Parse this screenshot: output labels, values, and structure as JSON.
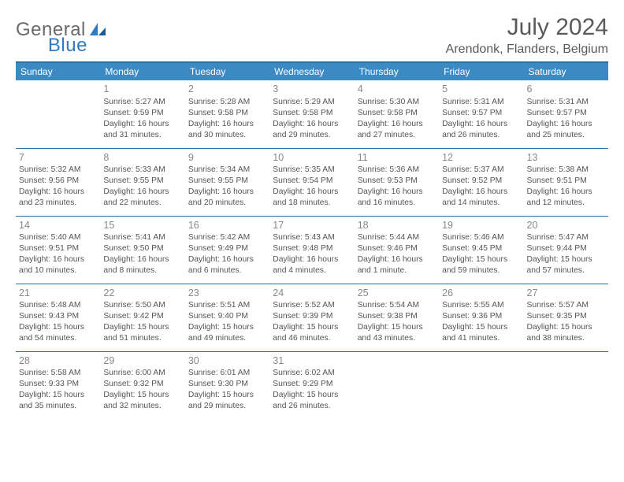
{
  "logo": {
    "general": "General",
    "blue": "Blue"
  },
  "header": {
    "month_title": "July 2024",
    "location": "Arendonk, Flanders, Belgium"
  },
  "colors": {
    "header_bg": "#3b8ac4",
    "border": "#2f6fa0",
    "logo_blue": "#2f7ac0"
  },
  "weekdays": [
    "Sunday",
    "Monday",
    "Tuesday",
    "Wednesday",
    "Thursday",
    "Friday",
    "Saturday"
  ],
  "weeks": [
    [
      null,
      {
        "n": "1",
        "sr": "Sunrise: 5:27 AM",
        "ss": "Sunset: 9:59 PM",
        "d1": "Daylight: 16 hours",
        "d2": "and 31 minutes."
      },
      {
        "n": "2",
        "sr": "Sunrise: 5:28 AM",
        "ss": "Sunset: 9:58 PM",
        "d1": "Daylight: 16 hours",
        "d2": "and 30 minutes."
      },
      {
        "n": "3",
        "sr": "Sunrise: 5:29 AM",
        "ss": "Sunset: 9:58 PM",
        "d1": "Daylight: 16 hours",
        "d2": "and 29 minutes."
      },
      {
        "n": "4",
        "sr": "Sunrise: 5:30 AM",
        "ss": "Sunset: 9:58 PM",
        "d1": "Daylight: 16 hours",
        "d2": "and 27 minutes."
      },
      {
        "n": "5",
        "sr": "Sunrise: 5:31 AM",
        "ss": "Sunset: 9:57 PM",
        "d1": "Daylight: 16 hours",
        "d2": "and 26 minutes."
      },
      {
        "n": "6",
        "sr": "Sunrise: 5:31 AM",
        "ss": "Sunset: 9:57 PM",
        "d1": "Daylight: 16 hours",
        "d2": "and 25 minutes."
      }
    ],
    [
      {
        "n": "7",
        "sr": "Sunrise: 5:32 AM",
        "ss": "Sunset: 9:56 PM",
        "d1": "Daylight: 16 hours",
        "d2": "and 23 minutes."
      },
      {
        "n": "8",
        "sr": "Sunrise: 5:33 AM",
        "ss": "Sunset: 9:55 PM",
        "d1": "Daylight: 16 hours",
        "d2": "and 22 minutes."
      },
      {
        "n": "9",
        "sr": "Sunrise: 5:34 AM",
        "ss": "Sunset: 9:55 PM",
        "d1": "Daylight: 16 hours",
        "d2": "and 20 minutes."
      },
      {
        "n": "10",
        "sr": "Sunrise: 5:35 AM",
        "ss": "Sunset: 9:54 PM",
        "d1": "Daylight: 16 hours",
        "d2": "and 18 minutes."
      },
      {
        "n": "11",
        "sr": "Sunrise: 5:36 AM",
        "ss": "Sunset: 9:53 PM",
        "d1": "Daylight: 16 hours",
        "d2": "and 16 minutes."
      },
      {
        "n": "12",
        "sr": "Sunrise: 5:37 AM",
        "ss": "Sunset: 9:52 PM",
        "d1": "Daylight: 16 hours",
        "d2": "and 14 minutes."
      },
      {
        "n": "13",
        "sr": "Sunrise: 5:38 AM",
        "ss": "Sunset: 9:51 PM",
        "d1": "Daylight: 16 hours",
        "d2": "and 12 minutes."
      }
    ],
    [
      {
        "n": "14",
        "sr": "Sunrise: 5:40 AM",
        "ss": "Sunset: 9:51 PM",
        "d1": "Daylight: 16 hours",
        "d2": "and 10 minutes."
      },
      {
        "n": "15",
        "sr": "Sunrise: 5:41 AM",
        "ss": "Sunset: 9:50 PM",
        "d1": "Daylight: 16 hours",
        "d2": "and 8 minutes."
      },
      {
        "n": "16",
        "sr": "Sunrise: 5:42 AM",
        "ss": "Sunset: 9:49 PM",
        "d1": "Daylight: 16 hours",
        "d2": "and 6 minutes."
      },
      {
        "n": "17",
        "sr": "Sunrise: 5:43 AM",
        "ss": "Sunset: 9:48 PM",
        "d1": "Daylight: 16 hours",
        "d2": "and 4 minutes."
      },
      {
        "n": "18",
        "sr": "Sunrise: 5:44 AM",
        "ss": "Sunset: 9:46 PM",
        "d1": "Daylight: 16 hours",
        "d2": "and 1 minute."
      },
      {
        "n": "19",
        "sr": "Sunrise: 5:46 AM",
        "ss": "Sunset: 9:45 PM",
        "d1": "Daylight: 15 hours",
        "d2": "and 59 minutes."
      },
      {
        "n": "20",
        "sr": "Sunrise: 5:47 AM",
        "ss": "Sunset: 9:44 PM",
        "d1": "Daylight: 15 hours",
        "d2": "and 57 minutes."
      }
    ],
    [
      {
        "n": "21",
        "sr": "Sunrise: 5:48 AM",
        "ss": "Sunset: 9:43 PM",
        "d1": "Daylight: 15 hours",
        "d2": "and 54 minutes."
      },
      {
        "n": "22",
        "sr": "Sunrise: 5:50 AM",
        "ss": "Sunset: 9:42 PM",
        "d1": "Daylight: 15 hours",
        "d2": "and 51 minutes."
      },
      {
        "n": "23",
        "sr": "Sunrise: 5:51 AM",
        "ss": "Sunset: 9:40 PM",
        "d1": "Daylight: 15 hours",
        "d2": "and 49 minutes."
      },
      {
        "n": "24",
        "sr": "Sunrise: 5:52 AM",
        "ss": "Sunset: 9:39 PM",
        "d1": "Daylight: 15 hours",
        "d2": "and 46 minutes."
      },
      {
        "n": "25",
        "sr": "Sunrise: 5:54 AM",
        "ss": "Sunset: 9:38 PM",
        "d1": "Daylight: 15 hours",
        "d2": "and 43 minutes."
      },
      {
        "n": "26",
        "sr": "Sunrise: 5:55 AM",
        "ss": "Sunset: 9:36 PM",
        "d1": "Daylight: 15 hours",
        "d2": "and 41 minutes."
      },
      {
        "n": "27",
        "sr": "Sunrise: 5:57 AM",
        "ss": "Sunset: 9:35 PM",
        "d1": "Daylight: 15 hours",
        "d2": "and 38 minutes."
      }
    ],
    [
      {
        "n": "28",
        "sr": "Sunrise: 5:58 AM",
        "ss": "Sunset: 9:33 PM",
        "d1": "Daylight: 15 hours",
        "d2": "and 35 minutes."
      },
      {
        "n": "29",
        "sr": "Sunrise: 6:00 AM",
        "ss": "Sunset: 9:32 PM",
        "d1": "Daylight: 15 hours",
        "d2": "and 32 minutes."
      },
      {
        "n": "30",
        "sr": "Sunrise: 6:01 AM",
        "ss": "Sunset: 9:30 PM",
        "d1": "Daylight: 15 hours",
        "d2": "and 29 minutes."
      },
      {
        "n": "31",
        "sr": "Sunrise: 6:02 AM",
        "ss": "Sunset: 9:29 PM",
        "d1": "Daylight: 15 hours",
        "d2": "and 26 minutes."
      },
      null,
      null,
      null
    ]
  ]
}
